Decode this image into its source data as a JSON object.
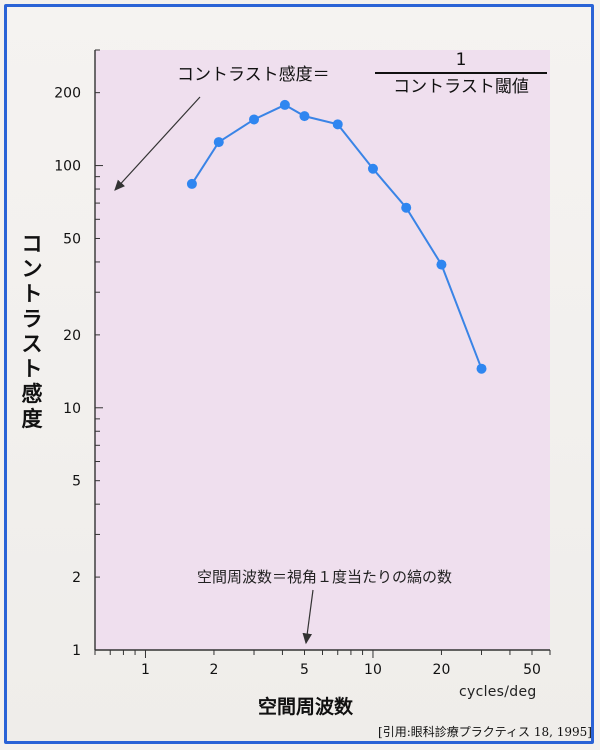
{
  "chart_data": {
    "type": "line",
    "x_scale": "log",
    "y_scale": "log",
    "xlim": [
      0.6,
      60
    ],
    "ylim": [
      1,
      300
    ],
    "x": [
      1.6,
      2.1,
      3.0,
      4.1,
      5.0,
      7.0,
      10,
      14,
      20,
      30
    ],
    "y": [
      84,
      125,
      155,
      178,
      160,
      148,
      97,
      67,
      39,
      14.5
    ],
    "x_ticks": [
      1,
      2,
      5,
      10,
      20,
      50
    ],
    "y_ticks": [
      1,
      2,
      5,
      10,
      20,
      50,
      100,
      200
    ],
    "xlabel": "空間周波数",
    "xunits": "cycles/deg",
    "ylabel": "コントラスト感度",
    "grid": false,
    "line_color": "#3a84e6",
    "marker_color": "#2f86f0",
    "plot_background": "#efdfee",
    "annotations": {
      "formula_lhs": "コントラスト感度＝",
      "formula_numerator": "1",
      "formula_denominator": "コントラスト閾値",
      "definition": "空間周波数＝視角１度当たりの縞の数"
    }
  },
  "citation": "[引用:眼科診療プラクティス 18, 1995]"
}
